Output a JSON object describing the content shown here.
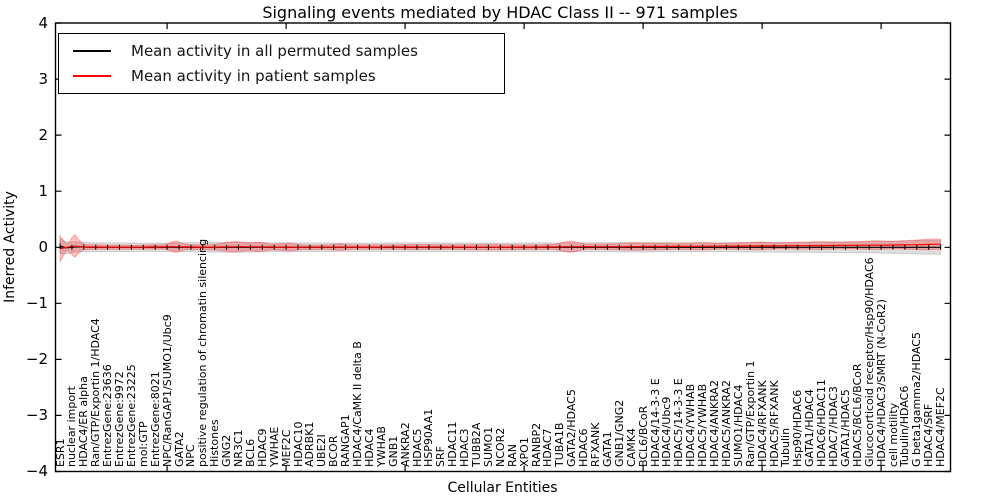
{
  "title": "Signaling events mediated by HDAC Class II -- 971 samples",
  "chart_data": {
    "type": "line",
    "title": "Signaling events mediated by HDAC Class II -- 971 samples",
    "xlabel": "Cellular Entities",
    "ylabel": "Inferred Activity",
    "ylim": [
      -4,
      4
    ],
    "grid": false,
    "legend_position": "upper left",
    "y_ticks": [
      {
        "value": 4,
        "label": "4"
      },
      {
        "value": 3,
        "label": "3"
      },
      {
        "value": 2,
        "label": "2"
      },
      {
        "value": 1,
        "label": "1"
      },
      {
        "value": 0,
        "label": "0"
      },
      {
        "value": -1,
        "label": "−1"
      },
      {
        "value": -2,
        "label": "−2"
      },
      {
        "value": -3,
        "label": "−3"
      },
      {
        "value": -4,
        "label": "−4"
      }
    ],
    "x_tick_indices": [
      9,
      19,
      29,
      39,
      49,
      59,
      69
    ],
    "categories": [
      "ESR1",
      "nuclear import",
      "HDAC4/ER alpha",
      "Ran/GTP/Exportin 1/HDAC4",
      "EntrezGene:23636",
      "EntrezGene:9972",
      "EntrezGene:23225",
      "mol:GTP",
      "EntrezGene:8021",
      "NPC/RanGAP1/SUMO1/Ubc9",
      "GATA2",
      "NPC",
      "positive regulation of chromatin silencing",
      "Histones",
      "GNG2",
      "NR3C1",
      "BCL6",
      "HDAC9",
      "YWHAE",
      "MEF2C",
      "HDAC10",
      "ADRBK1",
      "UBE2I",
      "BCOR",
      "RANGAP1",
      "HDAC4/CaMK II delta B",
      "HDAC4",
      "YWHAB",
      "GNB1",
      "ANKRA2",
      "HDAC5",
      "HSP90AA1",
      "SRF",
      "HDAC11",
      "HDAC3",
      "TUBB2A",
      "SUMO1",
      "NCOR2",
      "RAN",
      "XPO1",
      "RANBP2",
      "HDAC7",
      "TUBA1B",
      "GATA2/HDAC5",
      "HDAC6",
      "RFXANK",
      "GATA1",
      "GNB1/GNG2",
      "CAMK4",
      "BCL6/BCoR",
      "HDAC4/14-3-3 E",
      "HDAC4/Ubc9",
      "HDAC5/14-3-3 E",
      "HDAC4/YWHAB",
      "HDAC5/YWHAB",
      "HDAC4/ANKRA2",
      "HDAC5/ANKRA2",
      "SUMO1/HDAC4",
      "Ran/GTP/Exportin 1",
      "HDAC4/RFXANK",
      "HDAC5/RFXANK",
      "Tubulin",
      "Hsp90/HDAC6",
      "GATA1/HDAC4",
      "HDAC6/HDAC11",
      "HDAC7/HDAC3",
      "GATA1/HDAC5",
      "HDAC5/BCL6/BCoR",
      "Glucocorticoid receptor/Hsp90/HDAC6",
      "HDAC4/HDAC3/SMRT (N-CoR2)",
      "cell motility",
      "Tubulin/HDAC6",
      "G beta1gamma2/HDAC5",
      "HDAC4/SRF",
      "HDAC4/MEF2C"
    ],
    "series": [
      {
        "name": "Mean activity in all permuted samples",
        "color": "#000000",
        "band_color": "rgba(0,0,0,0.13)",
        "marker": "vertical-dash",
        "mean_knots": [
          [
            0,
            0.02
          ],
          [
            0.6,
            -0.015
          ],
          [
            1.3,
            0.01
          ],
          [
            2.5,
            0
          ],
          [
            74,
            0
          ]
        ],
        "band_knots": [
          [
            0,
            0.13
          ],
          [
            1,
            0.095
          ],
          [
            3,
            0.08
          ],
          [
            8,
            0.075
          ],
          [
            12,
            0.085
          ],
          [
            15,
            0.09
          ],
          [
            18,
            0.08
          ],
          [
            24,
            0.075
          ],
          [
            30,
            0.08
          ],
          [
            36,
            0.075
          ],
          [
            42,
            0.08
          ],
          [
            48,
            0.085
          ],
          [
            54,
            0.08
          ],
          [
            58,
            0.085
          ],
          [
            62,
            0.09
          ],
          [
            66,
            0.095
          ],
          [
            69,
            0.105
          ],
          [
            71,
            0.115
          ],
          [
            73,
            0.125
          ],
          [
            74,
            0.125
          ]
        ]
      },
      {
        "name": "Mean activity in patient samples",
        "color": "#ff0000",
        "band_color": "rgba(255,0,0,0.25)",
        "marker": "none",
        "mean_knots": [
          [
            0,
            -0.025
          ],
          [
            0.6,
            0
          ],
          [
            1.2,
            0.025
          ],
          [
            2,
            0.005
          ],
          [
            6,
            0
          ],
          [
            9.7,
            0.01
          ],
          [
            12,
            0
          ],
          [
            15,
            0.01
          ],
          [
            20,
            0
          ],
          [
            30,
            0.005
          ],
          [
            38,
            0
          ],
          [
            43,
            0.01
          ],
          [
            47,
            0.01
          ],
          [
            52,
            0.015
          ],
          [
            56,
            0.02
          ],
          [
            60,
            0.025
          ],
          [
            64,
            0.03
          ],
          [
            67,
            0.035
          ],
          [
            70,
            0.04
          ],
          [
            72,
            0.045
          ],
          [
            74,
            0.055
          ]
        ],
        "band_knots": [
          [
            0,
            0.235
          ],
          [
            0.6,
            0.03
          ],
          [
            1.2,
            0.215
          ],
          [
            1.9,
            0.05
          ],
          [
            3,
            0.04
          ],
          [
            6,
            0.035
          ],
          [
            8.8,
            0.04
          ],
          [
            9.7,
            0.105
          ],
          [
            10.6,
            0.045
          ],
          [
            12,
            0.04
          ],
          [
            13.4,
            0.06
          ],
          [
            14.6,
            0.095
          ],
          [
            15.8,
            0.07
          ],
          [
            16.8,
            0.085
          ],
          [
            17.8,
            0.05
          ],
          [
            19.3,
            0.07
          ],
          [
            20.5,
            0.04
          ],
          [
            22.5,
            0.04
          ],
          [
            23.5,
            0.06
          ],
          [
            24.5,
            0.04
          ],
          [
            27,
            0.04
          ],
          [
            30,
            0.045
          ],
          [
            33,
            0.04
          ],
          [
            36,
            0.05
          ],
          [
            39,
            0.04
          ],
          [
            41.5,
            0.045
          ],
          [
            42.9,
            0.105
          ],
          [
            44.2,
            0.045
          ],
          [
            46,
            0.05
          ],
          [
            48,
            0.065
          ],
          [
            50,
            0.06
          ],
          [
            52,
            0.05
          ],
          [
            53.8,
            0.065
          ],
          [
            55.5,
            0.05
          ],
          [
            57.5,
            0.06
          ],
          [
            58.8,
            0.07
          ],
          [
            60,
            0.055
          ],
          [
            62,
            0.06
          ],
          [
            63.9,
            0.07
          ],
          [
            65.5,
            0.06
          ],
          [
            67,
            0.065
          ],
          [
            68.5,
            0.08
          ],
          [
            70,
            0.065
          ],
          [
            71.5,
            0.08
          ],
          [
            73,
            0.095
          ],
          [
            74,
            0.09
          ]
        ]
      }
    ]
  },
  "legend": {
    "items": [
      {
        "label": "Mean activity in all permuted samples",
        "color": "#000000"
      },
      {
        "label": "Mean activity in patient samples",
        "color": "#ff0000"
      }
    ]
  }
}
